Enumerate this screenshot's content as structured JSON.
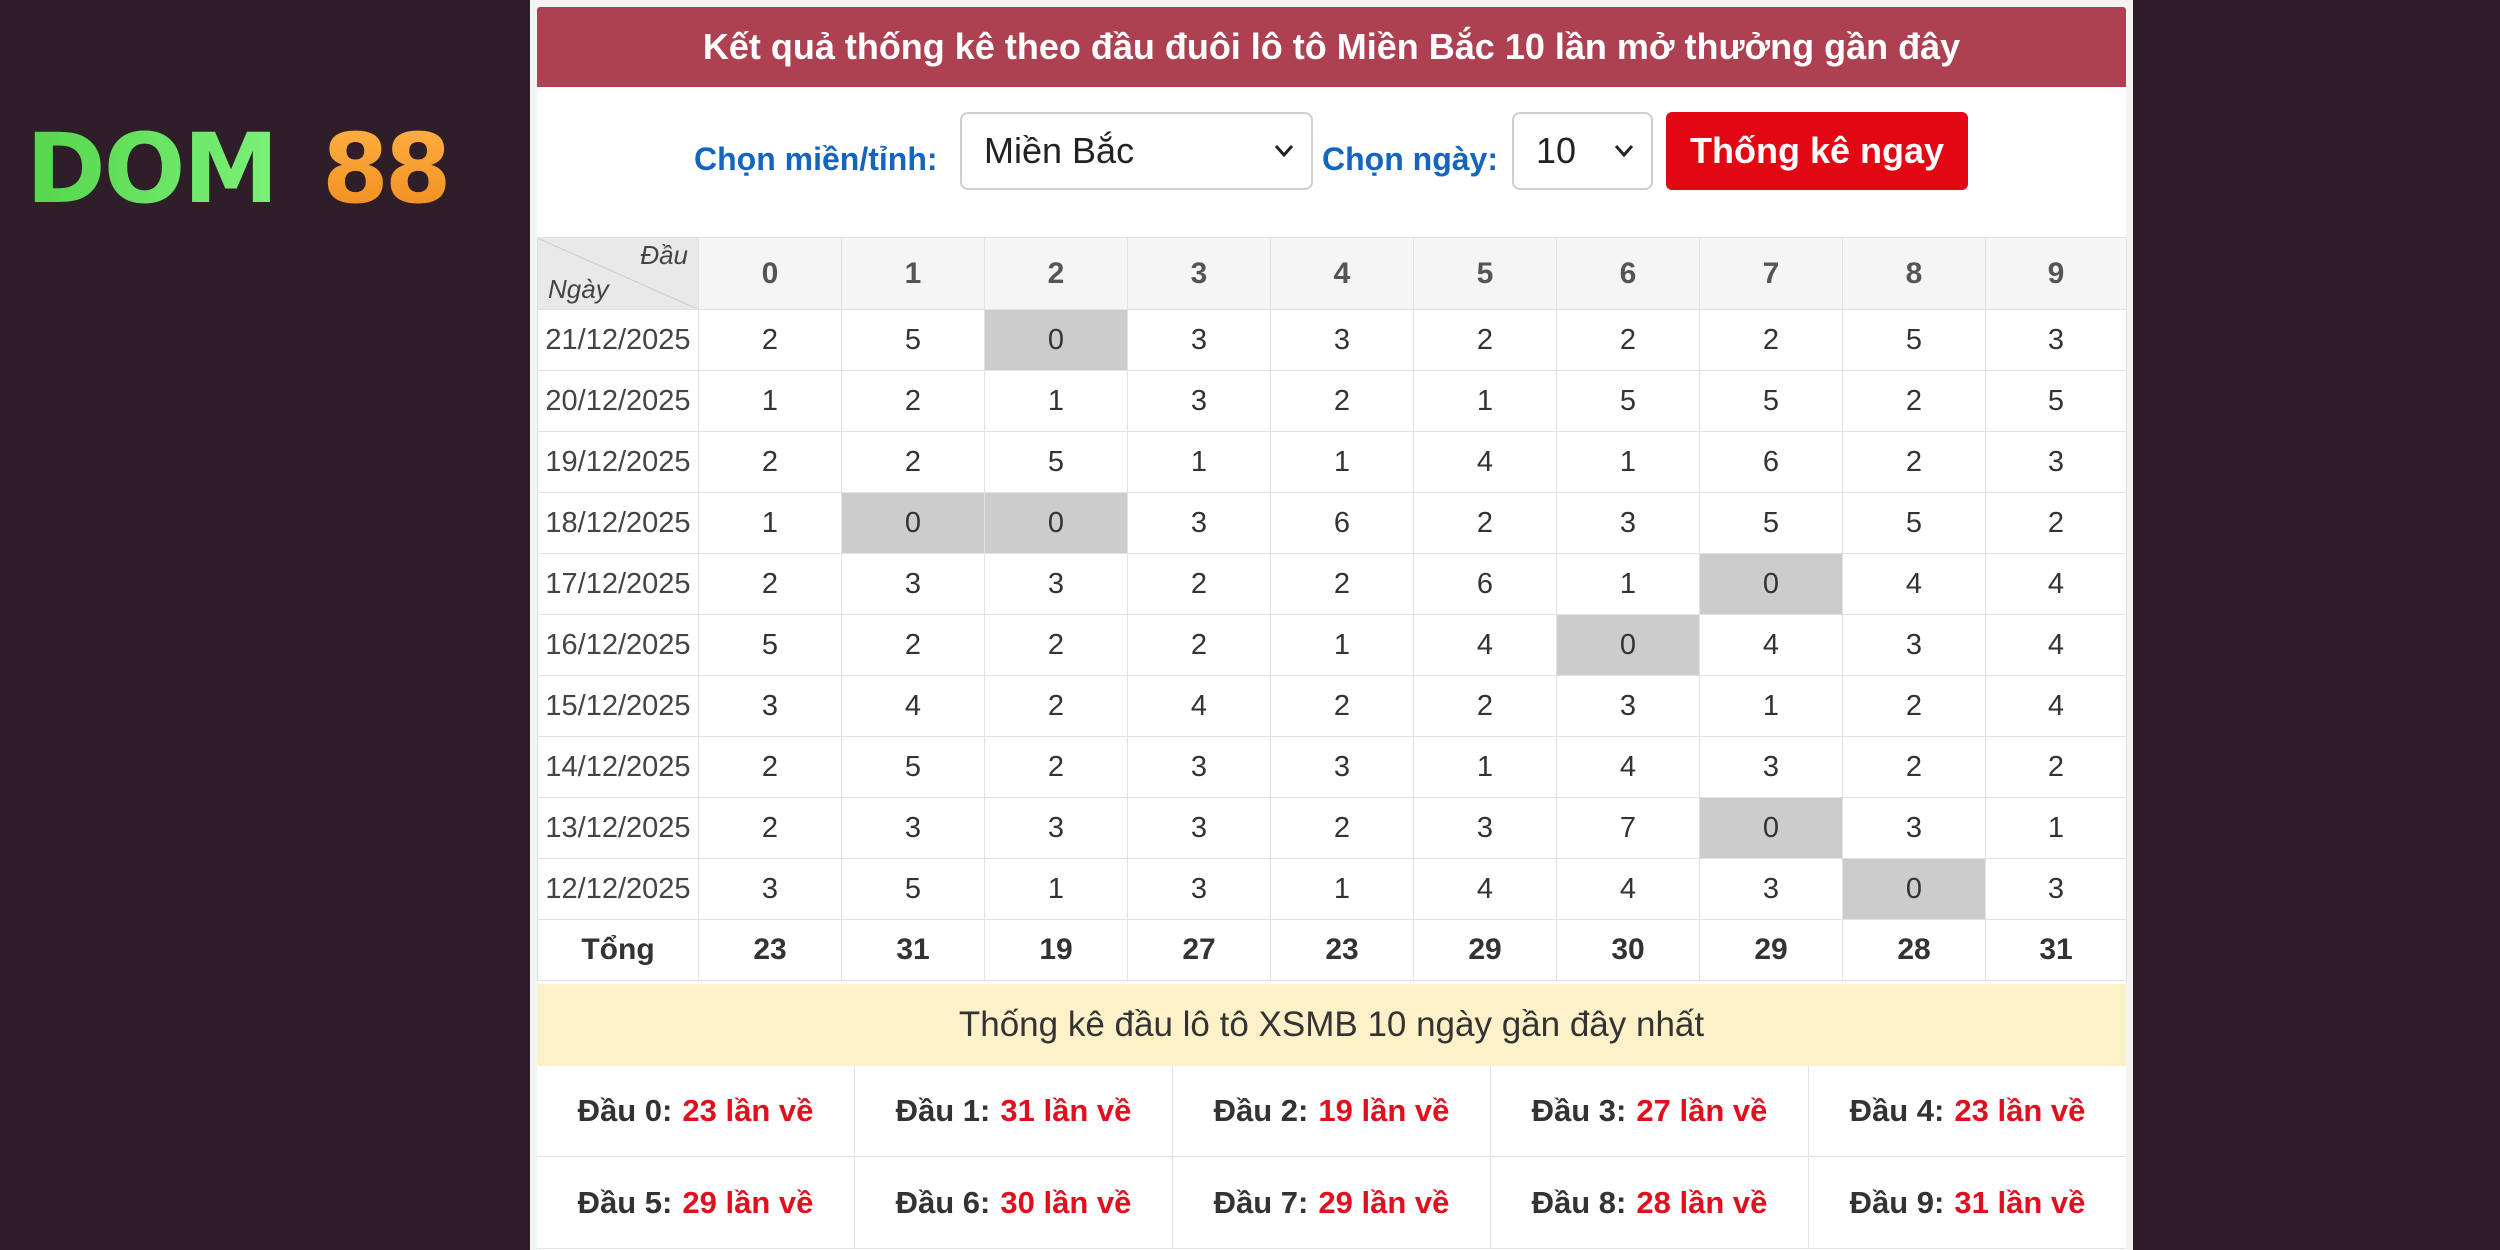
{
  "logo": {
    "part1": "DOM",
    "part2": "88"
  },
  "title": "Kết quả thống kê theo đầu đuôi lô tô Miền Bắc 10 lần mở thưởng gần đây",
  "controls": {
    "region_label": "Chọn miền/tỉnh:",
    "region_value": "Miền Bắc",
    "days_label": "Chọn ngày:",
    "days_value": "10",
    "submit_label": "Thống kê ngay"
  },
  "table": {
    "corner_head": "Đầu",
    "corner_row": "Ngày",
    "headers": [
      "0",
      "1",
      "2",
      "3",
      "4",
      "5",
      "6",
      "7",
      "8",
      "9"
    ],
    "rows": [
      {
        "date": "21/12/2025",
        "values": [
          "2",
          "5",
          "0",
          "3",
          "3",
          "2",
          "2",
          "2",
          "5",
          "3"
        ]
      },
      {
        "date": "20/12/2025",
        "values": [
          "1",
          "2",
          "1",
          "3",
          "2",
          "1",
          "5",
          "5",
          "2",
          "5"
        ]
      },
      {
        "date": "19/12/2025",
        "values": [
          "2",
          "2",
          "5",
          "1",
          "1",
          "4",
          "1",
          "6",
          "2",
          "3"
        ]
      },
      {
        "date": "18/12/2025",
        "values": [
          "1",
          "0",
          "0",
          "3",
          "6",
          "2",
          "3",
          "5",
          "5",
          "2"
        ]
      },
      {
        "date": "17/12/2025",
        "values": [
          "2",
          "3",
          "3",
          "2",
          "2",
          "6",
          "1",
          "0",
          "4",
          "4"
        ]
      },
      {
        "date": "16/12/2025",
        "values": [
          "5",
          "2",
          "2",
          "2",
          "1",
          "4",
          "0",
          "4",
          "3",
          "4"
        ]
      },
      {
        "date": "15/12/2025",
        "values": [
          "3",
          "4",
          "2",
          "4",
          "2",
          "2",
          "3",
          "1",
          "2",
          "4"
        ]
      },
      {
        "date": "14/12/2025",
        "values": [
          "2",
          "5",
          "2",
          "3",
          "3",
          "1",
          "4",
          "3",
          "2",
          "2"
        ]
      },
      {
        "date": "13/12/2025",
        "values": [
          "2",
          "3",
          "3",
          "3",
          "2",
          "3",
          "7",
          "0",
          "3",
          "1"
        ]
      },
      {
        "date": "12/12/2025",
        "values": [
          "3",
          "5",
          "1",
          "3",
          "1",
          "4",
          "4",
          "3",
          "0",
          "3"
        ]
      }
    ],
    "total_label": "Tổng",
    "totals": [
      "23",
      "31",
      "19",
      "27",
      "23",
      "29",
      "30",
      "29",
      "28",
      "31"
    ]
  },
  "summary": {
    "heading": "Thống kê đầu lô tô XSMB 10 ngày gần đây nhất",
    "items": [
      {
        "label": "Đầu 0:",
        "count": "23 lần về"
      },
      {
        "label": "Đầu 1:",
        "count": "31 lần về"
      },
      {
        "label": "Đầu 2:",
        "count": "19 lần về"
      },
      {
        "label": "Đầu 3:",
        "count": "27 lần về"
      },
      {
        "label": "Đầu 4:",
        "count": "23 lần về"
      },
      {
        "label": "Đầu 5:",
        "count": "29 lần về"
      },
      {
        "label": "Đầu 6:",
        "count": "30 lần về"
      },
      {
        "label": "Đầu 7:",
        "count": "29 lần về"
      },
      {
        "label": "Đầu 8:",
        "count": "28 lần về"
      },
      {
        "label": "Đầu 9:",
        "count": "31 lần về"
      }
    ]
  },
  "colors": {
    "title_bar": "#ad4152",
    "label_blue": "#1565c0",
    "button_red": "#e30613",
    "count_red": "#e0101e",
    "zero_cell": "#cccccc",
    "summary_bg": "#fdf1c9",
    "page_bg": "#2d1e28"
  }
}
